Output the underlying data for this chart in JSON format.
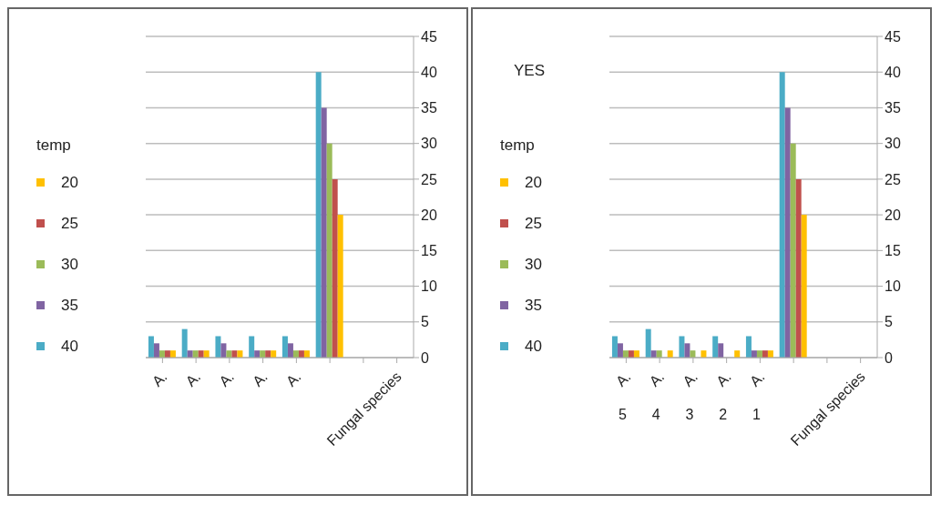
{
  "chart_data": [
    {
      "type": "bar",
      "legend_title": "temp",
      "categories": [
        "A.",
        "A.",
        "A.",
        "A.",
        "A.",
        null,
        null,
        "Fungal species"
      ],
      "ylim": [
        0,
        45
      ],
      "yticks": [
        0,
        5,
        10,
        15,
        20,
        25,
        30,
        35,
        40,
        45
      ],
      "grid": "y",
      "legend": "left",
      "series": [
        {
          "name": "20",
          "color": "#ffc000",
          "values": [
            1,
            1,
            1,
            1,
            1,
            20,
            null,
            null
          ]
        },
        {
          "name": "25",
          "color": "#c0504d",
          "values": [
            1,
            1,
            1,
            1,
            1,
            25,
            null,
            null
          ]
        },
        {
          "name": "30",
          "color": "#9bbb59",
          "values": [
            1,
            1,
            1,
            1,
            1,
            30,
            null,
            null
          ]
        },
        {
          "name": "35",
          "color": "#8064a2",
          "values": [
            2,
            1,
            2,
            1,
            2,
            35,
            null,
            null
          ]
        },
        {
          "name": "40",
          "color": "#4bacc6",
          "values": [
            3,
            4,
            3,
            3,
            3,
            40,
            null,
            null
          ]
        }
      ]
    },
    {
      "type": "bar",
      "legend_title": "temp",
      "annotations": [
        "YES"
      ],
      "categories": [
        "A. 5",
        "A. 4",
        "A. 3",
        "A. 2",
        "A. 1",
        null,
        null,
        "Fungal species"
      ],
      "ylim": [
        0,
        45
      ],
      "yticks": [
        0,
        5,
        10,
        15,
        20,
        25,
        30,
        35,
        40,
        45
      ],
      "grid": "y",
      "legend": "left",
      "series": [
        {
          "name": "20",
          "color": "#ffc000",
          "values": [
            1,
            1,
            1,
            1,
            1,
            20,
            null,
            null
          ]
        },
        {
          "name": "25",
          "color": "#c0504d",
          "values": [
            1,
            null,
            null,
            null,
            1,
            25,
            null,
            null
          ]
        },
        {
          "name": "30",
          "color": "#9bbb59",
          "values": [
            1,
            1,
            1,
            null,
            1,
            30,
            null,
            null
          ]
        },
        {
          "name": "35",
          "color": "#8064a2",
          "values": [
            2,
            1,
            2,
            2,
            1,
            35,
            null,
            null
          ]
        },
        {
          "name": "40",
          "color": "#4bacc6",
          "values": [
            3,
            4,
            3,
            3,
            3,
            40,
            null,
            null
          ]
        }
      ]
    }
  ]
}
